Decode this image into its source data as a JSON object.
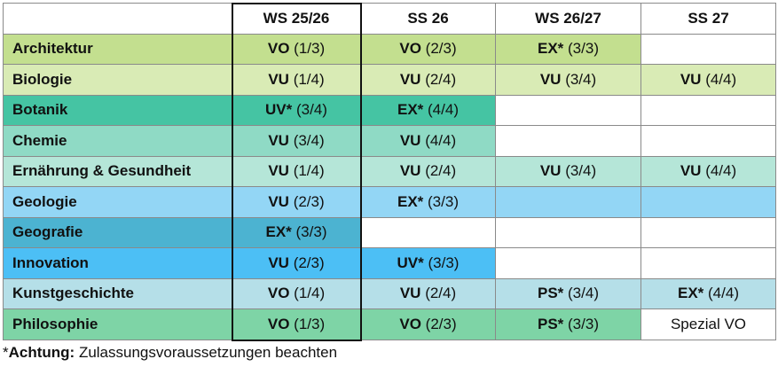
{
  "header": {
    "columns": [
      "",
      "WS 25/26",
      "SS 26",
      "WS 26/27",
      "SS 27"
    ]
  },
  "highlighted_column": "WS 25/26",
  "rows": [
    {
      "subject": "Architektur",
      "color": "#c3df8f",
      "cells": [
        {
          "code": "VO",
          "prog": " (1/3)"
        },
        {
          "code": "VO",
          "prog": " (2/3)"
        },
        {
          "code": "EX*",
          "prog": " (3/3)"
        },
        null
      ]
    },
    {
      "subject": "Biologie",
      "color": "#d9ebb5",
      "cells": [
        {
          "code": "VU",
          "prog": " (1/4)"
        },
        {
          "code": "VU",
          "prog": " (2/4)"
        },
        {
          "code": "VU",
          "prog": " (3/4)"
        },
        {
          "code": "VU",
          "prog": " (4/4)"
        }
      ]
    },
    {
      "subject": "Botanik",
      "color": "#45c4a3",
      "cells": [
        {
          "code": "UV*",
          "prog": " (3/4)"
        },
        {
          "code": "EX*",
          "prog": " (4/4)"
        },
        null,
        null
      ]
    },
    {
      "subject": "Chemie",
      "color": "#8fdac5",
      "cells": [
        {
          "code": "VU",
          "prog": " (3/4)"
        },
        {
          "code": "VU",
          "prog": " (4/4)"
        },
        null,
        null
      ]
    },
    {
      "subject": "Ernährung & Gesundheit",
      "color": "#b5e6d8",
      "cells": [
        {
          "code": "VU",
          "prog": " (1/4)"
        },
        {
          "code": "VU",
          "prog": " (2/4)"
        },
        {
          "code": "VU",
          "prog": " (3/4)"
        },
        {
          "code": "VU",
          "prog": " (4/4)"
        }
      ]
    },
    {
      "subject": "Geologie",
      "color": "#93d6f5",
      "cells": [
        {
          "code": "VU",
          "prog": " (2/3)"
        },
        {
          "code": "EX*",
          "prog": " (3/3)"
        },
        {
          "code": "",
          "prog": ""
        },
        {
          "code": "",
          "prog": ""
        }
      ]
    },
    {
      "subject": "Geografie",
      "color": "#4cb3d1",
      "cells": [
        {
          "code": "EX*",
          "prog": " (3/3)"
        },
        null,
        null,
        null
      ]
    },
    {
      "subject": "Innovation",
      "color": "#4cbff5",
      "cells": [
        {
          "code": "VU",
          "prog": " (2/3)"
        },
        {
          "code": "UV*",
          "prog": " (3/3)"
        },
        null,
        null
      ]
    },
    {
      "subject": "Kunstgeschichte",
      "color": "#b5dfe8",
      "cells": [
        {
          "code": "VO",
          "prog": " (1/4)"
        },
        {
          "code": "VU",
          "prog": " (2/4)"
        },
        {
          "code": "PS*",
          "prog": " (3/4)"
        },
        {
          "code": "EX*",
          "prog": " (4/4)"
        }
      ]
    },
    {
      "subject": "Philosophie",
      "color": "#7ed4a6",
      "cells": [
        {
          "code": "VO",
          "prog": " (1/3)"
        },
        {
          "code": "VO",
          "prog": " (2/3)"
        },
        {
          "code": "PS*",
          "prog": " (3/3)"
        },
        {
          "code": "",
          "prog": "Spezial VO",
          "plain": true
        }
      ]
    }
  ],
  "footnote": {
    "star": "*",
    "bold": "Achtung:",
    "text": " Zulassungsvoraussetzungen beachten"
  }
}
